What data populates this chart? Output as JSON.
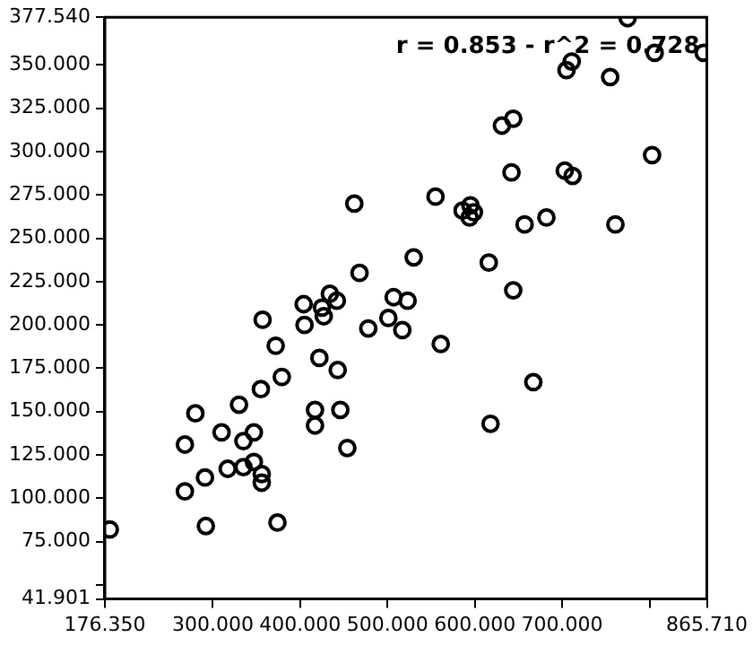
{
  "chart_data": {
    "type": "scatter",
    "annotations": [
      "r = 0.853 - r^2 = 0.728"
    ],
    "x": [
      182,
      268,
      268,
      280,
      291,
      292,
      310,
      317,
      330,
      335,
      335,
      347,
      347,
      355,
      357,
      356,
      356,
      372,
      374,
      379,
      404,
      405,
      417,
      417,
      422,
      425,
      427,
      434,
      442,
      443,
      446,
      454,
      468,
      478,
      501,
      507,
      517,
      523,
      462,
      530,
      775,
      806,
      862,
      711,
      705,
      755,
      644,
      631,
      803,
      642,
      703,
      712,
      555,
      586,
      595,
      599,
      594,
      657,
      682,
      761,
      616,
      644,
      561,
      667,
      618
    ],
    "series": [
      {
        "color": "#000000",
        "values": [
          82,
          104,
          131,
          149,
          112,
          84,
          138,
          117,
          154,
          133,
          118,
          138,
          121,
          163,
          203,
          114,
          109,
          188,
          86,
          170,
          212,
          200,
          151,
          142,
          181,
          210,
          205,
          218,
          214,
          174,
          151,
          129,
          230,
          198,
          204,
          216,
          197,
          214,
          270,
          239,
          377,
          357,
          357,
          352,
          347,
          343,
          319,
          315,
          298,
          288,
          289,
          286,
          274,
          266,
          269,
          265,
          262,
          258,
          262,
          258,
          236,
          220,
          189,
          167,
          143
        ]
      }
    ],
    "xlim": [
      176.35,
      865.71
    ],
    "xticks": [
      {
        "value": 176.35,
        "label": "176.350"
      },
      {
        "value": 300,
        "label": "300.000"
      },
      {
        "value": 400,
        "label": "400.000"
      },
      {
        "value": 500,
        "label": "500.000"
      },
      {
        "value": 600,
        "label": "600.000"
      },
      {
        "value": 700,
        "label": "700.000"
      },
      {
        "value": 800,
        "label": null
      },
      {
        "value": 865.71,
        "label": "865.710"
      }
    ],
    "ylim": [
      41.901,
      377.54
    ],
    "yticks": [
      {
        "value": 41.901,
        "label": "41.901"
      },
      {
        "value": 50,
        "label": null
      },
      {
        "value": 75,
        "label": "75.000"
      },
      {
        "value": 100,
        "label": "100.000"
      },
      {
        "value": 125,
        "label": "125.000"
      },
      {
        "value": 150,
        "label": "150.000"
      },
      {
        "value": 175,
        "label": "175.000"
      },
      {
        "value": 200,
        "label": "200.000"
      },
      {
        "value": 225,
        "label": "225.000"
      },
      {
        "value": 250,
        "label": "250.000"
      },
      {
        "value": 275,
        "label": "275.000"
      },
      {
        "value": 300,
        "label": "300.000"
      },
      {
        "value": 325,
        "label": "325.000"
      },
      {
        "value": 350,
        "label": "350.000"
      },
      {
        "value": 377.54,
        "label": "377.540"
      }
    ],
    "grid": false,
    "legend": false,
    "marker": "circle"
  }
}
